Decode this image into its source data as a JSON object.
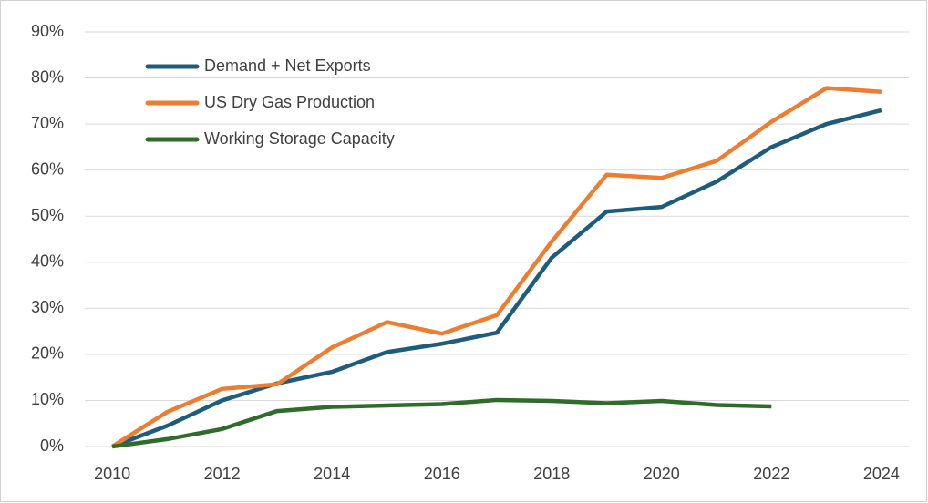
{
  "chart_data": {
    "type": "line",
    "x": [
      2010,
      2011,
      2012,
      2013,
      2014,
      2015,
      2016,
      2017,
      2018,
      2019,
      2020,
      2021,
      2022,
      2023,
      2024
    ],
    "series": [
      {
        "name": "Demand + Net Exports",
        "color": "#1d5c7c",
        "values": [
          0,
          4.5,
          10,
          13.7,
          16.2,
          20.5,
          22.3,
          24.7,
          41,
          51,
          52,
          57.5,
          65,
          70,
          73
        ]
      },
      {
        "name": "US Dry Gas Production",
        "color": "#ee7d31",
        "values": [
          0,
          7.5,
          12.5,
          13.5,
          21.5,
          27,
          24.5,
          28.5,
          44.5,
          59,
          58.3,
          62,
          70.5,
          77.8,
          77
        ]
      },
      {
        "name": "Working Storage Capacity",
        "color": "#2f6b2a",
        "values": [
          0,
          1.6,
          3.8,
          7.7,
          8.6,
          8.9,
          9.2,
          10.1,
          9.9,
          9.4,
          9.9,
          9,
          8.7,
          null,
          null
        ]
      }
    ],
    "xlim": [
      2009.5,
      2024.5
    ],
    "xticks": [
      2010,
      2012,
      2014,
      2016,
      2018,
      2020,
      2022,
      2024
    ],
    "ylim": [
      0,
      90
    ],
    "yticks": [
      {
        "value": 0,
        "label": "0%"
      },
      {
        "value": 10,
        "label": "10%"
      },
      {
        "value": 20,
        "label": "20%"
      },
      {
        "value": 30,
        "label": "30%"
      },
      {
        "value": 40,
        "label": "40%"
      },
      {
        "value": 50,
        "label": "50%"
      },
      {
        "value": 60,
        "label": "60%"
      },
      {
        "value": 70,
        "label": "70%"
      },
      {
        "value": 80,
        "label": "80%"
      },
      {
        "value": 90,
        "label": "90%"
      }
    ],
    "grid": true,
    "legend": "upper left"
  }
}
